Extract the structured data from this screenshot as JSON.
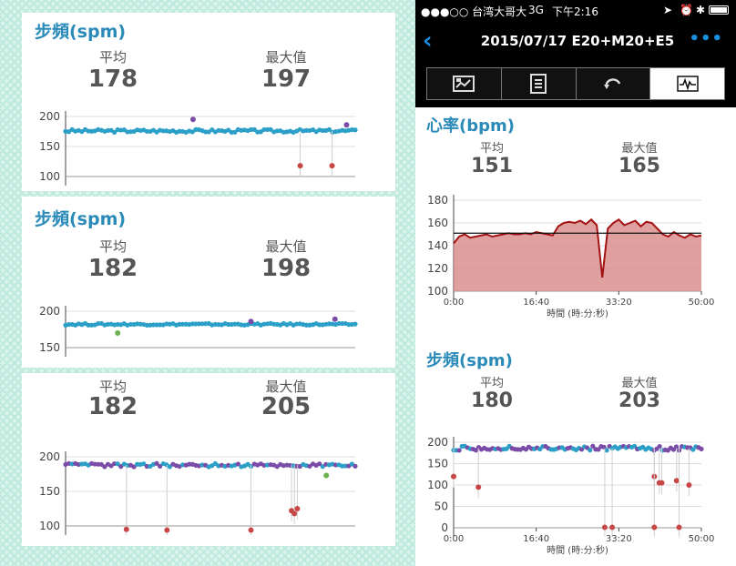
{
  "cards": [
    {
      "title": "步頻(spm)",
      "avg_label": "平均",
      "avg": "178",
      "max_label": "最大值",
      "max": "197"
    },
    {
      "title": "步頻(spm)",
      "avg_label": "平均",
      "avg": "182",
      "max_label": "最大值",
      "max": "198"
    },
    {
      "avg_label": "平均",
      "avg": "182",
      "max_label": "最大值",
      "max": "205"
    }
  ],
  "status_bar": {
    "carrier": "●●●○○ 台湾大哥大",
    "network": "3G",
    "time": "下午2:16",
    "icons": [
      "location-icon",
      "alarm-icon",
      "bluetooth-icon",
      "battery-icon"
    ]
  },
  "nav": {
    "title": "2015/07/17 E20+M20+E5",
    "back_icon": "chevron-left-icon",
    "more_icon": "more-dots-icon"
  },
  "tabs": [
    {
      "icon": "flag-chart-icon"
    },
    {
      "icon": "document-list-icon"
    },
    {
      "icon": "loop-icon"
    },
    {
      "icon": "waveform-icon"
    }
  ],
  "heart_rate": {
    "title": "心率(bpm)",
    "avg_label": "平均",
    "avg": "151",
    "max_label": "最大值",
    "max": "165"
  },
  "cadence": {
    "title": "步頻(spm)",
    "avg_label": "平均",
    "avg": "180",
    "max_label": "最大值",
    "max": "203"
  },
  "colors": {
    "accent": "#2a8ab8",
    "nav_blue": "#1a8fe0",
    "hr_line": "#a31212",
    "hr_fill": "#d98888",
    "dot_teal": "#2b9fc7",
    "dot_purple": "#7a4ca8",
    "dot_red": "#c84646",
    "dot_green": "#6ab04c"
  },
  "chart_data": [
    {
      "type": "scatter",
      "ylim": [
        100,
        200
      ],
      "yticks": [
        "200",
        "150",
        "100"
      ],
      "baseline": 176,
      "outliers": [
        {
          "t": 0.81,
          "y": 118,
          "color": "red"
        },
        {
          "t": 0.92,
          "y": 118,
          "color": "red"
        },
        {
          "t": 0.44,
          "y": 195,
          "color": "purple"
        },
        {
          "t": 0.97,
          "y": 186,
          "color": "purple"
        }
      ]
    },
    {
      "type": "scatter",
      "ylim": [
        150,
        200
      ],
      "yticks": [
        "200",
        "150"
      ],
      "baseline": 182,
      "outliers": [
        {
          "t": 0.18,
          "y": 170,
          "color": "green"
        },
        {
          "t": 0.64,
          "y": 186,
          "color": "purple"
        },
        {
          "t": 0.93,
          "y": 189,
          "color": "purple"
        }
      ]
    },
    {
      "type": "scatter",
      "ylim": [
        100,
        200
      ],
      "yticks": [
        "200",
        "150",
        "100"
      ],
      "baseline": 188,
      "outliers": [
        {
          "t": 0.21,
          "y": 95,
          "color": "red"
        },
        {
          "t": 0.35,
          "y": 94,
          "color": "red"
        },
        {
          "t": 0.64,
          "y": 94,
          "color": "red"
        },
        {
          "t": 0.78,
          "y": 122,
          "color": "red"
        },
        {
          "t": 0.79,
          "y": 118,
          "color": "red"
        },
        {
          "t": 0.8,
          "y": 125,
          "color": "red"
        },
        {
          "t": 0.9,
          "y": 173,
          "color": "green"
        }
      ]
    },
    {
      "type": "area",
      "ylim": [
        100,
        180
      ],
      "yticks": [
        "180",
        "160",
        "140",
        "120",
        "100"
      ],
      "xticks": [
        "0:00",
        "16:40",
        "33:20",
        "50:00"
      ],
      "xlabel": "時間 (時:分:秒)",
      "avg_line": 151,
      "series": [
        {
          "values": [
            142,
            148,
            150,
            147,
            148,
            149,
            150,
            148,
            149,
            150,
            151,
            150,
            150,
            151,
            150,
            152,
            151,
            150,
            149,
            157,
            160,
            161,
            160,
            162,
            159,
            163,
            158,
            112,
            155,
            160,
            163,
            158,
            160,
            162,
            157,
            161,
            160,
            155,
            150,
            148,
            152,
            149,
            147,
            150,
            148,
            149
          ]
        }
      ]
    },
    {
      "type": "scatter",
      "ylim": [
        0,
        200
      ],
      "yticks": [
        "200",
        "150",
        "100",
        "50",
        "0"
      ],
      "xticks": [
        "0:00",
        "16:40",
        "33:20",
        "50:00"
      ],
      "xlabel": "時間 (時:分:秒)",
      "baseline": 186,
      "outliers": [
        {
          "t": 0.0,
          "y": 120,
          "color": "red"
        },
        {
          "t": 0.1,
          "y": 95,
          "color": "red"
        },
        {
          "t": 0.61,
          "y": 1,
          "color": "red"
        },
        {
          "t": 0.64,
          "y": 1,
          "color": "red"
        },
        {
          "t": 0.81,
          "y": 120,
          "color": "red"
        },
        {
          "t": 0.83,
          "y": 105,
          "color": "red"
        },
        {
          "t": 0.84,
          "y": 105,
          "color": "red"
        },
        {
          "t": 0.81,
          "y": 1,
          "color": "red"
        },
        {
          "t": 0.9,
          "y": 110,
          "color": "red"
        },
        {
          "t": 0.91,
          "y": 1,
          "color": "red"
        },
        {
          "t": 0.95,
          "y": 100,
          "color": "red"
        }
      ]
    }
  ]
}
